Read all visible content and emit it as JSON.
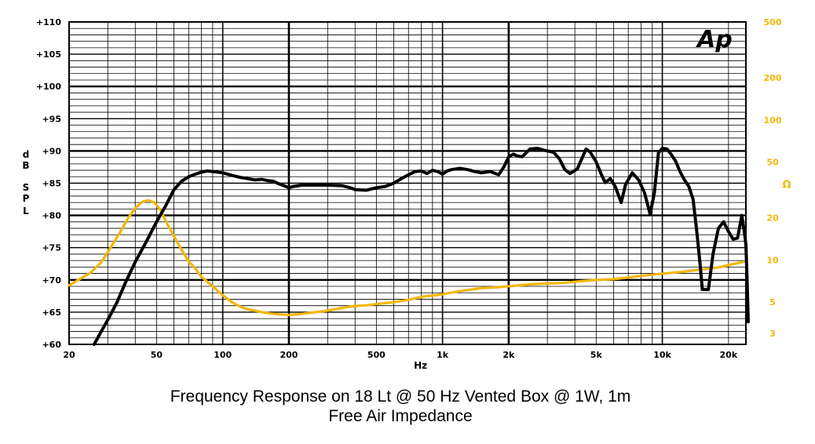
{
  "chart_data": {
    "type": "line",
    "caption_line1": "Frequency Response on 18 Lt @ 50 Hz Vented Box @ 1W, 1m",
    "caption_line2": "Free Air Impedance",
    "logo": "Ap",
    "x_axis": {
      "label": "Hz",
      "scale": "log",
      "range": [
        20,
        24000
      ],
      "tick_values": [
        20,
        50,
        100,
        200,
        500,
        1000,
        2000,
        5000,
        10000,
        20000
      ],
      "tick_labels": [
        "20",
        "50",
        "100",
        "200",
        "500",
        "1k",
        "2k",
        "5k",
        "10k",
        "20k"
      ]
    },
    "y_axis_left": {
      "label_chars": [
        "d",
        "B",
        "S",
        "P",
        "L"
      ],
      "range": [
        60,
        110
      ],
      "tick_values": [
        60,
        65,
        70,
        75,
        80,
        85,
        90,
        95,
        100,
        105,
        110
      ],
      "tick_labels": [
        "+60",
        "+65",
        "+70",
        "+75",
        "+80",
        "+85",
        "+90",
        "+95",
        "+100",
        "+105",
        "+110"
      ]
    },
    "y_axis_right": {
      "label": "Ω",
      "scale": "log",
      "range": [
        2.5,
        500
      ],
      "tick_values": [
        3,
        5,
        10,
        20,
        50,
        100,
        200,
        500
      ],
      "tick_labels": [
        "3",
        "5",
        "10",
        "20",
        "50",
        "100",
        "200",
        "500"
      ]
    },
    "grid": true,
    "series": [
      {
        "color": "#000000",
        "axis": "left",
        "points": [
          [
            26,
            60
          ],
          [
            28,
            62
          ],
          [
            30,
            63.8
          ],
          [
            33,
            66.5
          ],
          [
            36,
            69.5
          ],
          [
            40,
            72.8
          ],
          [
            45,
            76
          ],
          [
            50,
            79
          ],
          [
            55,
            81.5
          ],
          [
            60,
            84
          ],
          [
            65,
            85.3
          ],
          [
            70,
            86
          ],
          [
            75,
            86.4
          ],
          [
            80,
            86.7
          ],
          [
            85,
            86.9
          ],
          [
            90,
            86.8
          ],
          [
            100,
            86.6
          ],
          [
            110,
            86.2
          ],
          [
            120,
            85.9
          ],
          [
            130,
            85.7
          ],
          [
            140,
            85.5
          ],
          [
            150,
            85.6
          ],
          [
            160,
            85.4
          ],
          [
            170,
            85.3
          ],
          [
            180,
            84.9
          ],
          [
            190,
            84.6
          ],
          [
            200,
            84.3
          ],
          [
            210,
            84.5
          ],
          [
            230,
            84.7
          ],
          [
            260,
            84.7
          ],
          [
            300,
            84.7
          ],
          [
            350,
            84.6
          ],
          [
            380,
            84.3
          ],
          [
            400,
            84
          ],
          [
            450,
            83.9
          ],
          [
            500,
            84.3
          ],
          [
            550,
            84.5
          ],
          [
            600,
            85
          ],
          [
            650,
            85.7
          ],
          [
            700,
            86.3
          ],
          [
            750,
            86.8
          ],
          [
            800,
            86.9
          ],
          [
            850,
            86.5
          ],
          [
            900,
            87
          ],
          [
            950,
            86.8
          ],
          [
            1000,
            86.4
          ],
          [
            1050,
            86.9
          ],
          [
            1100,
            87.1
          ],
          [
            1200,
            87.3
          ],
          [
            1300,
            87.1
          ],
          [
            1400,
            86.8
          ],
          [
            1500,
            86.6
          ],
          [
            1650,
            86.8
          ],
          [
            1800,
            86.3
          ],
          [
            1900,
            87.5
          ],
          [
            2000,
            89.1
          ],
          [
            2100,
            89.5
          ],
          [
            2200,
            89.2
          ],
          [
            2300,
            89.1
          ],
          [
            2400,
            89.7
          ],
          [
            2500,
            90.3
          ],
          [
            2700,
            90.4
          ],
          [
            2900,
            90.1
          ],
          [
            3200,
            89.8
          ],
          [
            3400,
            88.8
          ],
          [
            3600,
            87.1
          ],
          [
            3800,
            86.5
          ],
          [
            4100,
            87.2
          ],
          [
            4300,
            88.8
          ],
          [
            4500,
            90.3
          ],
          [
            4700,
            89.8
          ],
          [
            5000,
            88.3
          ],
          [
            5300,
            86.2
          ],
          [
            5500,
            85.1
          ],
          [
            5800,
            85.7
          ],
          [
            6100,
            84.5
          ],
          [
            6500,
            82
          ],
          [
            6800,
            84.8
          ],
          [
            7300,
            86.6
          ],
          [
            7800,
            85.5
          ],
          [
            8300,
            83.5
          ],
          [
            8800,
            80.2
          ],
          [
            9200,
            83.5
          ],
          [
            9600,
            89.7
          ],
          [
            10000,
            90.4
          ],
          [
            10500,
            90.3
          ],
          [
            11000,
            89.4
          ],
          [
            11500,
            88.4
          ],
          [
            12000,
            86.9
          ],
          [
            12600,
            85.5
          ],
          [
            13200,
            84.5
          ],
          [
            13800,
            82.5
          ],
          [
            14300,
            78
          ],
          [
            14800,
            73
          ],
          [
            15200,
            68.5
          ],
          [
            16200,
            68.5
          ],
          [
            17000,
            74
          ],
          [
            18000,
            78
          ],
          [
            19000,
            79
          ],
          [
            20000,
            77.5
          ],
          [
            21000,
            76.3
          ],
          [
            22000,
            76.5
          ],
          [
            23000,
            80
          ],
          [
            23700,
            77
          ],
          [
            24000,
            75.5
          ],
          [
            24300,
            70
          ],
          [
            24600,
            63.5
          ]
        ]
      },
      {
        "color": "#f2b705",
        "axis": "right",
        "points": [
          [
            20,
            6.6
          ],
          [
            22,
            7.2
          ],
          [
            25,
            8.1
          ],
          [
            28,
            9.6
          ],
          [
            31,
            12.4
          ],
          [
            34,
            15.6
          ],
          [
            37,
            19.8
          ],
          [
            40,
            23.5
          ],
          [
            43,
            26
          ],
          [
            46,
            26.7
          ],
          [
            49,
            25.7
          ],
          [
            52,
            22.8
          ],
          [
            56,
            18
          ],
          [
            60,
            14.8
          ],
          [
            65,
            11.8
          ],
          [
            70,
            9.8
          ],
          [
            75,
            8.7
          ],
          [
            80,
            7.6
          ],
          [
            90,
            6.5
          ],
          [
            100,
            5.6
          ],
          [
            110,
            5
          ],
          [
            120,
            4.65
          ],
          [
            130,
            4.45
          ],
          [
            140,
            4.35
          ],
          [
            150,
            4.25
          ],
          [
            165,
            4.15
          ],
          [
            180,
            4.1
          ],
          [
            200,
            4.05
          ],
          [
            220,
            4.1
          ],
          [
            250,
            4.2
          ],
          [
            300,
            4.35
          ],
          [
            350,
            4.55
          ],
          [
            400,
            4.7
          ],
          [
            450,
            4.75
          ],
          [
            500,
            4.85
          ],
          [
            600,
            5
          ],
          [
            700,
            5.2
          ],
          [
            800,
            5.45
          ],
          [
            1000,
            5.7
          ],
          [
            1200,
            6
          ],
          [
            1500,
            6.3
          ],
          [
            1800,
            6.4
          ],
          [
            2000,
            6.5
          ],
          [
            2500,
            6.7
          ],
          [
            3000,
            6.8
          ],
          [
            3500,
            6.85
          ],
          [
            4000,
            7
          ],
          [
            5000,
            7.2
          ],
          [
            6000,
            7.3
          ],
          [
            7000,
            7.5
          ],
          [
            8000,
            7.7
          ],
          [
            9000,
            7.85
          ],
          [
            10000,
            8
          ],
          [
            11000,
            8.1
          ],
          [
            12000,
            8.2
          ],
          [
            14000,
            8.45
          ],
          [
            16000,
            8.65
          ],
          [
            18000,
            8.85
          ],
          [
            20000,
            9.2
          ],
          [
            22000,
            9.5
          ],
          [
            24000,
            9.8
          ]
        ]
      }
    ]
  }
}
